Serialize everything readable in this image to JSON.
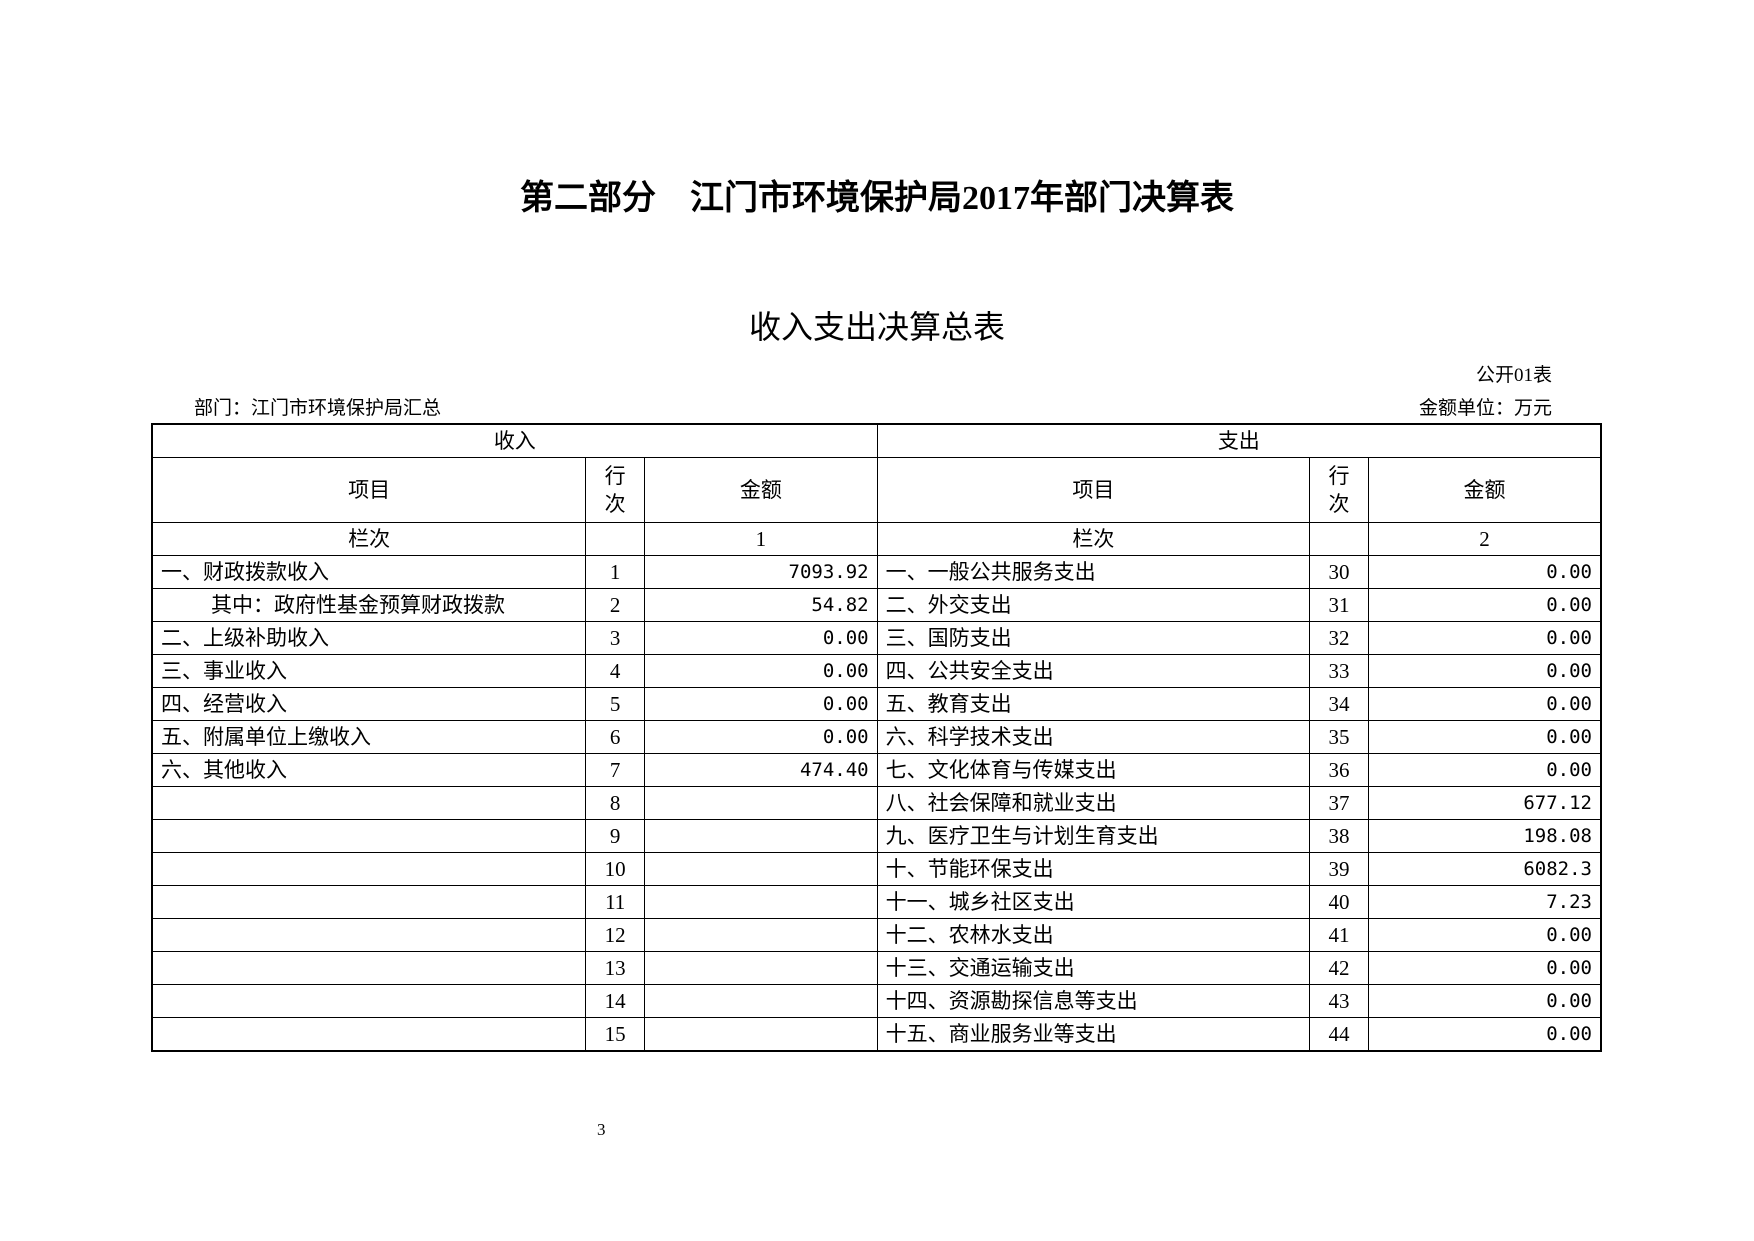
{
  "title": "第二部分　江门市环境保护局2017年部门决算表",
  "subtitle": "收入支出决算总表",
  "table_code": "公开01表",
  "department": "部门：江门市环境保护局汇总",
  "unit": "金额单位：万元",
  "headers": {
    "income": "收入",
    "expense": "支出",
    "item": "项目",
    "row_no_1": "行",
    "row_no_2": "次",
    "amount": "金额",
    "column_label": "栏次",
    "income_col": "1",
    "expense_col": "2"
  },
  "rows": [
    {
      "in_item": "一、财政拨款收入",
      "in_no": "1",
      "in_amt": "7093.92",
      "ex_item": "一、一般公共服务支出",
      "ex_no": "30",
      "ex_amt": "0.00"
    },
    {
      "in_item": "其中：政府性基金预算财政拨款",
      "in_no": "2",
      "in_amt": "54.82",
      "ex_item": "二、外交支出",
      "ex_no": "31",
      "ex_amt": "0.00"
    },
    {
      "in_item": "二、上级补助收入",
      "in_no": "3",
      "in_amt": "0.00",
      "ex_item": "三、国防支出",
      "ex_no": "32",
      "ex_amt": "0.00"
    },
    {
      "in_item": "三、事业收入",
      "in_no": "4",
      "in_amt": "0.00",
      "ex_item": "四、公共安全支出",
      "ex_no": "33",
      "ex_amt": "0.00"
    },
    {
      "in_item": "四、经营收入",
      "in_no": "5",
      "in_amt": "0.00",
      "ex_item": "五、教育支出",
      "ex_no": "34",
      "ex_amt": "0.00"
    },
    {
      "in_item": "五、附属单位上缴收入",
      "in_no": "6",
      "in_amt": "0.00",
      "ex_item": "六、科学技术支出",
      "ex_no": "35",
      "ex_amt": "0.00"
    },
    {
      "in_item": "六、其他收入",
      "in_no": "7",
      "in_amt": "474.40",
      "ex_item": "七、文化体育与传媒支出",
      "ex_no": "36",
      "ex_amt": "0.00"
    },
    {
      "in_item": "",
      "in_no": "8",
      "in_amt": "",
      "ex_item": "八、社会保障和就业支出",
      "ex_no": "37",
      "ex_amt": "677.12"
    },
    {
      "in_item": "",
      "in_no": "9",
      "in_amt": "",
      "ex_item": "九、医疗卫生与计划生育支出",
      "ex_no": "38",
      "ex_amt": "198.08"
    },
    {
      "in_item": "",
      "in_no": "10",
      "in_amt": "",
      "ex_item": "十、节能环保支出",
      "ex_no": "39",
      "ex_amt": "6082.3"
    },
    {
      "in_item": "",
      "in_no": "11",
      "in_amt": "",
      "ex_item": "十一、城乡社区支出",
      "ex_no": "40",
      "ex_amt": "7.23"
    },
    {
      "in_item": "",
      "in_no": "12",
      "in_amt": "",
      "ex_item": "十二、农林水支出",
      "ex_no": "41",
      "ex_amt": "0.00"
    },
    {
      "in_item": "",
      "in_no": "13",
      "in_amt": "",
      "ex_item": "十三、交通运输支出",
      "ex_no": "42",
      "ex_amt": "0.00"
    },
    {
      "in_item": "",
      "in_no": "14",
      "in_amt": "",
      "ex_item": "十四、资源勘探信息等支出",
      "ex_no": "43",
      "ex_amt": "0.00"
    },
    {
      "in_item": "",
      "in_no": "15",
      "in_amt": "",
      "ex_item": "十五、商业服务业等支出",
      "ex_no": "44",
      "ex_amt": "0.00"
    }
  ],
  "page_number": "3"
}
